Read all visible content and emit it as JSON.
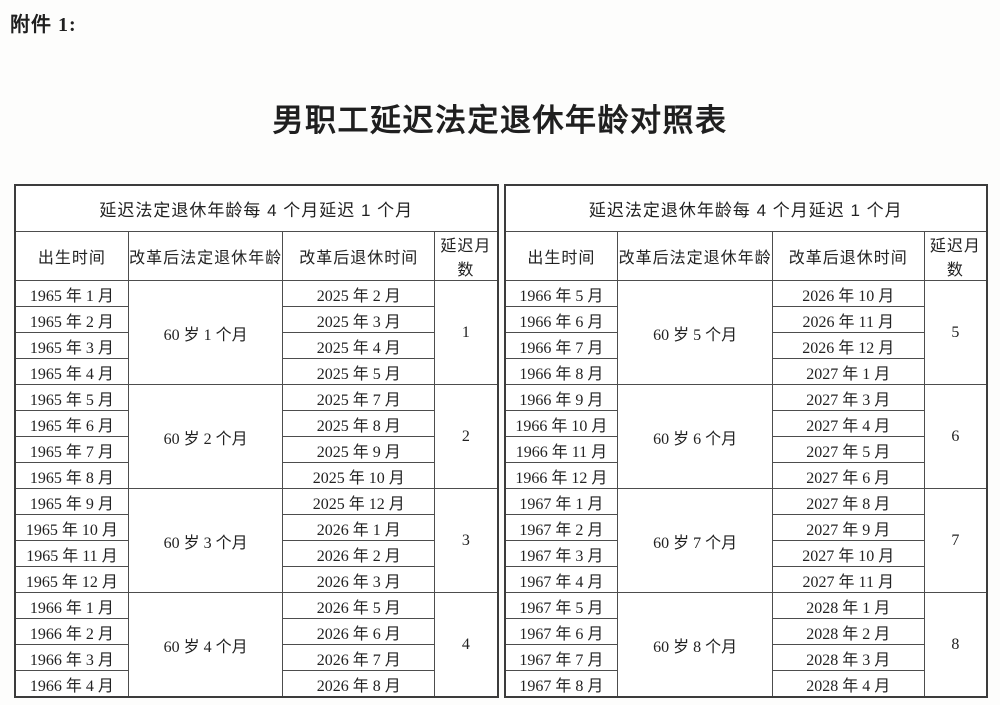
{
  "doc": {
    "attachment_label": "附件 1:",
    "title": "男职工延迟法定退休年龄对照表"
  },
  "colors": {
    "text": "#222222",
    "border": "#4d4d4d",
    "background": "#ffffff"
  },
  "tables": [
    {
      "merged_header": "延迟法定退休年龄每 4 个月延迟 1 个月",
      "columns": [
        "出生时间",
        "改革后法定退休年龄",
        "改革后退休时间",
        "延迟月数"
      ],
      "groups": [
        {
          "age": "60 岁 1 个月",
          "delay": "1",
          "rows": [
            {
              "birth": "1965 年 1 月",
              "retire": "2025 年 2 月"
            },
            {
              "birth": "1965 年 2 月",
              "retire": "2025 年 3 月"
            },
            {
              "birth": "1965 年 3 月",
              "retire": "2025 年 4 月"
            },
            {
              "birth": "1965 年 4 月",
              "retire": "2025 年 5 月"
            }
          ]
        },
        {
          "age": "60 岁 2 个月",
          "delay": "2",
          "rows": [
            {
              "birth": "1965 年 5 月",
              "retire": "2025 年 7 月"
            },
            {
              "birth": "1965 年 6 月",
              "retire": "2025 年 8 月"
            },
            {
              "birth": "1965 年 7 月",
              "retire": "2025 年 9 月"
            },
            {
              "birth": "1965 年 8 月",
              "retire": "2025 年 10 月"
            }
          ]
        },
        {
          "age": "60 岁 3 个月",
          "delay": "3",
          "rows": [
            {
              "birth": "1965 年 9 月",
              "retire": "2025 年 12 月"
            },
            {
              "birth": "1965 年 10 月",
              "retire": "2026 年 1 月"
            },
            {
              "birth": "1965 年 11 月",
              "retire": "2026 年 2 月"
            },
            {
              "birth": "1965 年 12 月",
              "retire": "2026 年 3 月"
            }
          ]
        },
        {
          "age": "60 岁 4 个月",
          "delay": "4",
          "rows": [
            {
              "birth": "1966 年 1 月",
              "retire": "2026 年 5 月"
            },
            {
              "birth": "1966 年 2 月",
              "retire": "2026 年 6 月"
            },
            {
              "birth": "1966 年 3 月",
              "retire": "2026 年 7 月"
            },
            {
              "birth": "1966 年 4 月",
              "retire": "2026 年 8 月"
            }
          ]
        }
      ]
    },
    {
      "merged_header": "延迟法定退休年龄每 4 个月延迟 1 个月",
      "columns": [
        "出生时间",
        "改革后法定退休年龄",
        "改革后退休时间",
        "延迟月数"
      ],
      "groups": [
        {
          "age": "60 岁 5 个月",
          "delay": "5",
          "rows": [
            {
              "birth": "1966 年 5 月",
              "retire": "2026 年 10 月"
            },
            {
              "birth": "1966 年 6 月",
              "retire": "2026 年 11 月"
            },
            {
              "birth": "1966 年 7 月",
              "retire": "2026 年 12 月"
            },
            {
              "birth": "1966 年 8 月",
              "retire": "2027 年 1 月"
            }
          ]
        },
        {
          "age": "60 岁 6 个月",
          "delay": "6",
          "rows": [
            {
              "birth": "1966 年 9 月",
              "retire": "2027 年 3 月"
            },
            {
              "birth": "1966 年 10 月",
              "retire": "2027 年 4 月"
            },
            {
              "birth": "1966 年 11 月",
              "retire": "2027 年 5 月"
            },
            {
              "birth": "1966 年 12 月",
              "retire": "2027 年 6 月"
            }
          ]
        },
        {
          "age": "60 岁 7 个月",
          "delay": "7",
          "rows": [
            {
              "birth": "1967 年 1 月",
              "retire": "2027 年 8 月"
            },
            {
              "birth": "1967 年 2 月",
              "retire": "2027 年 9 月"
            },
            {
              "birth": "1967 年 3 月",
              "retire": "2027 年 10 月"
            },
            {
              "birth": "1967 年 4 月",
              "retire": "2027 年 11 月"
            }
          ]
        },
        {
          "age": "60 岁 8 个月",
          "delay": "8",
          "rows": [
            {
              "birth": "1967 年 5 月",
              "retire": "2028 年 1 月"
            },
            {
              "birth": "1967 年 6 月",
              "retire": "2028 年 2 月"
            },
            {
              "birth": "1967 年 7 月",
              "retire": "2028 年 3 月"
            },
            {
              "birth": "1967 年 8 月",
              "retire": "2028 年 4 月"
            }
          ]
        }
      ]
    }
  ]
}
